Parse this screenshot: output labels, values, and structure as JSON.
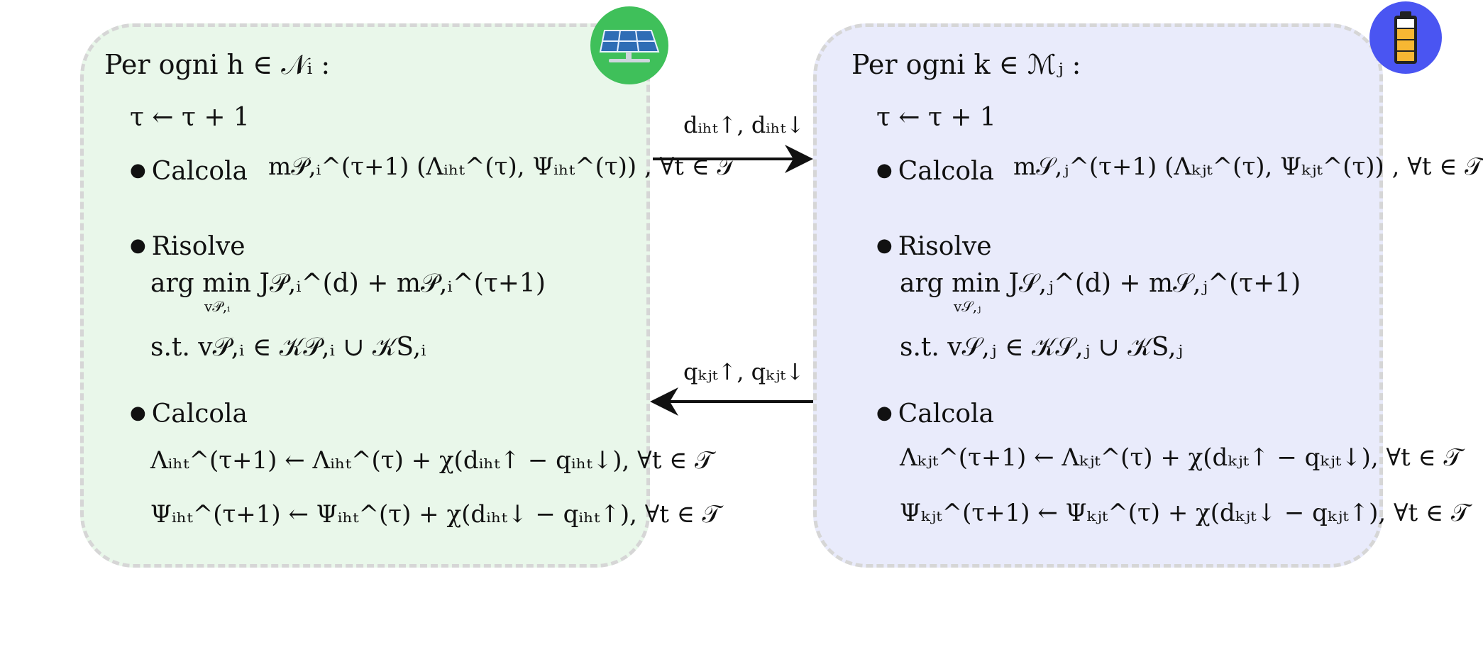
{
  "colors": {
    "left_panel_bg": "#e9f7ea",
    "right_panel_bg": "#e9ebfb",
    "panel_border": "#d6d6d6",
    "solar_icon_bg": "#3fc05a",
    "battery_icon_bg": "#4a55f2",
    "battery_fill": "#f7b733"
  },
  "icons": {
    "left": "solar-panel-icon",
    "right": "battery-icon"
  },
  "left": {
    "title": "Per ogni  h ∈ 𝒩ᵢ :",
    "update": "τ ← τ + 1",
    "step1": "Calcola",
    "step1_math": "m𝒫,ᵢ^(τ+1) (Λᵢₕₜ^(τ), Ψᵢₕₜ^(τ)) ,  ∀t ∈ 𝒯",
    "step2": "Risolve",
    "argmin": "arg min J𝒫,ᵢ^(d) + m𝒫,ᵢ^(τ+1)",
    "argmin_sub": "v𝒫,ᵢ",
    "st": "s.t.  v𝒫,ᵢ ∈ 𝒦𝒫,ᵢ ∪ 𝒦S,ᵢ",
    "step3": "Calcola",
    "lambda_update": "Λᵢₕₜ^(τ+1) ← Λᵢₕₜ^(τ) + χ(dᵢₕₜ↑ − qᵢₕₜ↓),  ∀t ∈ 𝒯",
    "psi_update": "Ψᵢₕₜ^(τ+1) ← Ψᵢₕₜ^(τ) + χ(dᵢₕₜ↓ − qᵢₕₜ↑),  ∀t ∈ 𝒯"
  },
  "right": {
    "title": "Per ogni k ∈ ℳⱼ :",
    "update": "τ ← τ + 1",
    "step1": "Calcola",
    "step1_math": "m𝒮,ⱼ^(τ+1) (Λₖⱼₜ^(τ), Ψₖⱼₜ^(τ)) ,  ∀t ∈ 𝒯",
    "step2": "Risolve",
    "argmin": "arg min J𝒮,ⱼ^(d) + m𝒮,ⱼ^(τ+1)",
    "argmin_sub": "v𝒮,ⱼ",
    "st": "s.t.  v𝒮,ⱼ ∈ 𝒦𝒮,ⱼ ∪ 𝒦S,ⱼ",
    "step3": "Calcola",
    "lambda_update": "Λₖⱼₜ^(τ+1) ← Λₖⱼₜ^(τ) + χ(dₖⱼₜ↑ − qₖⱼₜ↓),  ∀t ∈ 𝒯",
    "psi_update": "Ψₖⱼₜ^(τ+1) ← Ψₖⱼₜ^(τ) + χ(dₖⱼₜ↓ − qₖⱼₜ↑),  ∀t ∈ 𝒯"
  },
  "arrows": {
    "top_label": "dᵢₕₜ↑,  dᵢₕₜ↓",
    "bottom_label": "qₖⱼₜ↑,  qₖⱼₜ↓"
  }
}
